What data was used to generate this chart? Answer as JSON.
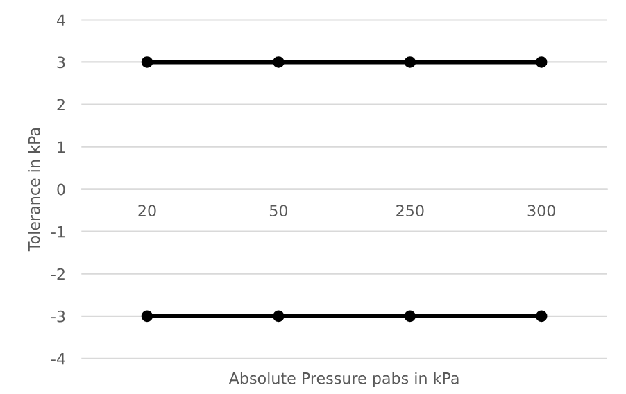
{
  "chart_data": {
    "type": "line",
    "xlabel": "Absolute Pressure pabs in kPa",
    "ylabel": "Tolerance in kPa",
    "categories": [
      "20",
      "50",
      "250",
      "300"
    ],
    "series": [
      {
        "color": "#000000",
        "values": [
          3,
          3,
          3,
          3
        ]
      },
      {
        "color": "#000000",
        "values": [
          -3,
          -3,
          -3,
          -3
        ]
      }
    ],
    "ylim": [
      -4,
      4
    ],
    "yticks": [
      -4,
      -3,
      -2,
      -1,
      0,
      1,
      2,
      3,
      4
    ],
    "grid": "y",
    "marker": "circle",
    "line_style": "solid",
    "legend": false
  }
}
